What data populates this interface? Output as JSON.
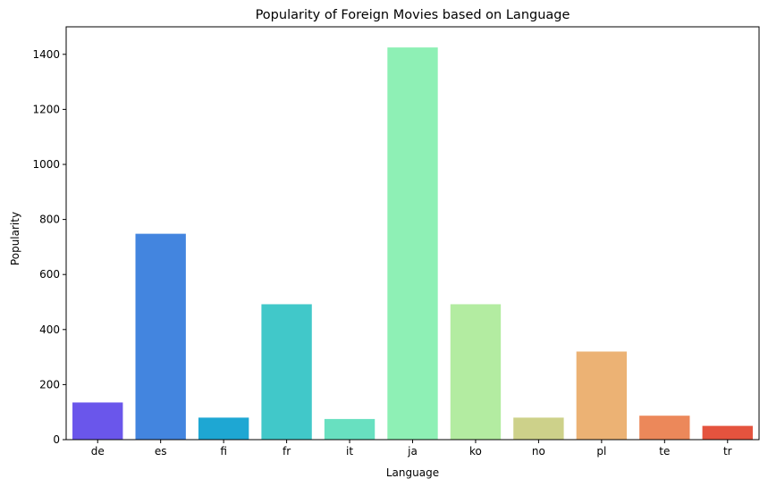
{
  "chart_data": {
    "type": "bar",
    "title": "Popularity of Foreign Movies based on Language",
    "xlabel": "Language",
    "ylabel": "Popularity",
    "categories": [
      "de",
      "es",
      "fi",
      "fr",
      "it",
      "ja",
      "ko",
      "no",
      "pl",
      "te",
      "tr"
    ],
    "values": [
      135,
      748,
      80,
      492,
      75,
      1425,
      492,
      80,
      320,
      87,
      50
    ],
    "colors": [
      "#6a56eb",
      "#4385df",
      "#1ea7d3",
      "#41c8c9",
      "#68e0c0",
      "#8ef0b5",
      "#b3eca1",
      "#cdd18a",
      "#ecb274",
      "#ec885a",
      "#e4533e"
    ],
    "ylim": [
      0,
      1500
    ],
    "yticks": [
      0,
      200,
      400,
      600,
      800,
      1000,
      1200,
      1400
    ],
    "grid": false,
    "legend": "none"
  }
}
